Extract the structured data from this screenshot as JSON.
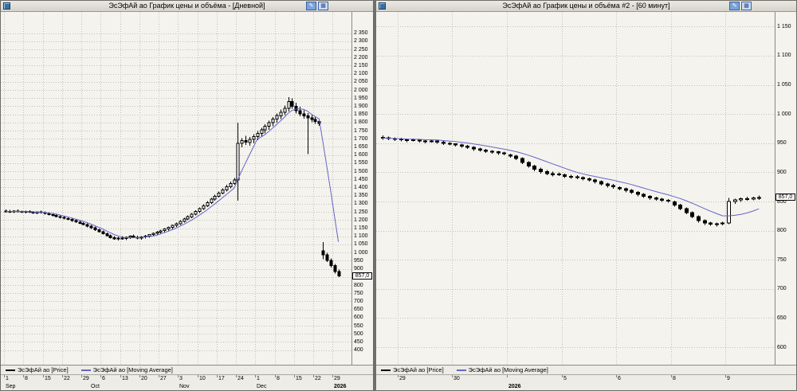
{
  "app": {
    "desktop_bg": "#6f6f6f",
    "grid_color": "#c2c0b8",
    "candle_up_fill": "#ffffff",
    "candle_down_fill": "#000000"
  },
  "windows": [
    {
      "title": "ЭсЭфАй ао График цены и объёма - [Дневной]",
      "price_marker": "857,0",
      "toolbar": {
        "button1": "✎",
        "button2": "▦"
      },
      "legend": [
        {
          "label": "ЭсЭфАй ао [Price]",
          "color": "#000000"
        },
        {
          "label": "ЭсЭфАй ао [Moving Average]",
          "color": "#6565c8"
        }
      ]
    },
    {
      "title": "ЭсЭфАй ао График цены и объёма #2 - [60 минут]",
      "price_marker": "857,0",
      "toolbar": {
        "button1": "✎",
        "button2": "▦"
      },
      "legend": [
        {
          "label": "ЭсЭфАй ао [Price]",
          "color": "#000000"
        },
        {
          "label": "ЭсЭфАй ао [Moving Average]",
          "color": "#6565c8"
        }
      ]
    }
  ],
  "chart_data": [
    {
      "type": "candlestick",
      "title": "ЭсЭфАй ао — Дневной",
      "timeframe": "daily",
      "ylim": [
        310,
        2480
      ],
      "y_ticks": {
        "min": 400,
        "max": 2350,
        "step": 50
      },
      "ma_period": 6,
      "ma_color": "#6565c8",
      "last_price": 857.0,
      "grid": [
        0,
        5,
        10,
        15,
        20,
        25,
        30,
        35,
        40,
        45,
        50,
        55,
        60,
        65,
        70,
        75,
        80,
        85
      ],
      "x_ticks": [
        {
          "label": "1",
          "i": 0
        },
        {
          "label": "8",
          "i": 5
        },
        {
          "label": "15",
          "i": 10
        },
        {
          "label": "22",
          "i": 15
        },
        {
          "label": "29",
          "i": 20
        },
        {
          "label": "6",
          "i": 25
        },
        {
          "label": "13",
          "i": 30
        },
        {
          "label": "20",
          "i": 35
        },
        {
          "label": "27",
          "i": 40
        },
        {
          "label": "3",
          "i": 45
        },
        {
          "label": "10",
          "i": 50
        },
        {
          "label": "17",
          "i": 55
        },
        {
          "label": "24",
          "i": 60
        },
        {
          "label": "1",
          "i": 65
        },
        {
          "label": "8",
          "i": 70
        },
        {
          "label": "15",
          "i": 75
        },
        {
          "label": "22",
          "i": 80
        },
        {
          "label": "29",
          "i": 85
        }
      ],
      "x_row2": [
        {
          "label": "Sep",
          "i": 0
        },
        {
          "label": "Oct",
          "i": 22
        },
        {
          "label": "Nov",
          "i": 45
        },
        {
          "label": "Dec",
          "i": 65
        },
        {
          "label": "2026",
          "i": 85,
          "bold": true
        }
      ],
      "candles": [
        [
          1256,
          1266,
          1246,
          1253
        ],
        [
          1253,
          1262,
          1244,
          1250
        ],
        [
          1250,
          1260,
          1242,
          1256
        ],
        [
          1256,
          1264,
          1248,
          1252
        ],
        [
          1252,
          1258,
          1242,
          1247
        ],
        [
          1247,
          1257,
          1240,
          1253
        ],
        [
          1253,
          1260,
          1244,
          1249
        ],
        [
          1249,
          1256,
          1238,
          1244
        ],
        [
          1244,
          1254,
          1236,
          1250
        ],
        [
          1250,
          1257,
          1241,
          1246
        ],
        [
          1246,
          1252,
          1234,
          1240
        ],
        [
          1240,
          1248,
          1229,
          1234
        ],
        [
          1234,
          1242,
          1222,
          1228
        ],
        [
          1228,
          1236,
          1216,
          1222
        ],
        [
          1222,
          1230,
          1210,
          1216
        ],
        [
          1216,
          1224,
          1204,
          1210
        ],
        [
          1210,
          1218,
          1198,
          1204
        ],
        [
          1204,
          1212,
          1190,
          1196
        ],
        [
          1196,
          1204,
          1182,
          1188
        ],
        [
          1188,
          1196,
          1174,
          1180
        ],
        [
          1180,
          1188,
          1166,
          1172
        ],
        [
          1172,
          1180,
          1156,
          1162
        ],
        [
          1162,
          1170,
          1146,
          1152
        ],
        [
          1152,
          1160,
          1134,
          1140
        ],
        [
          1140,
          1148,
          1122,
          1128
        ],
        [
          1128,
          1136,
          1110,
          1116
        ],
        [
          1116,
          1124,
          1098,
          1104
        ],
        [
          1104,
          1112,
          1086,
          1092
        ],
        [
          1092,
          1102,
          1078,
          1084
        ],
        [
          1084,
          1096,
          1074,
          1090
        ],
        [
          1090,
          1100,
          1080,
          1086
        ],
        [
          1086,
          1098,
          1076,
          1094
        ],
        [
          1094,
          1106,
          1084,
          1100
        ],
        [
          1100,
          1110,
          1088,
          1094
        ],
        [
          1094,
          1104,
          1082,
          1088
        ],
        [
          1088,
          1100,
          1080,
          1096
        ],
        [
          1096,
          1108,
          1086,
          1102
        ],
        [
          1102,
          1114,
          1092,
          1110
        ],
        [
          1110,
          1122,
          1100,
          1118
        ],
        [
          1118,
          1132,
          1108,
          1126
        ],
        [
          1126,
          1140,
          1116,
          1134
        ],
        [
          1134,
          1150,
          1126,
          1144
        ],
        [
          1144,
          1160,
          1136,
          1154
        ],
        [
          1154,
          1172,
          1146,
          1166
        ],
        [
          1166,
          1184,
          1158,
          1178
        ],
        [
          1178,
          1198,
          1170,
          1192
        ],
        [
          1192,
          1214,
          1184,
          1206
        ],
        [
          1206,
          1228,
          1198,
          1220
        ],
        [
          1220,
          1244,
          1212,
          1236
        ],
        [
          1236,
          1260,
          1228,
          1252
        ],
        [
          1252,
          1278,
          1244,
          1270
        ],
        [
          1270,
          1296,
          1262,
          1288
        ],
        [
          1288,
          1316,
          1280,
          1308
        ],
        [
          1308,
          1336,
          1300,
          1328
        ],
        [
          1328,
          1356,
          1318,
          1346
        ],
        [
          1346,
          1376,
          1338,
          1366
        ],
        [
          1366,
          1396,
          1358,
          1386
        ],
        [
          1386,
          1416,
          1376,
          1404
        ],
        [
          1404,
          1436,
          1396,
          1424
        ],
        [
          1424,
          1458,
          1416,
          1446
        ],
        [
          1446,
          1800,
          1320,
          1672
        ],
        [
          1672,
          1704,
          1648,
          1688
        ],
        [
          1688,
          1718,
          1662,
          1678
        ],
        [
          1678,
          1710,
          1656,
          1696
        ],
        [
          1696,
          1728,
          1672,
          1714
        ],
        [
          1714,
          1748,
          1692,
          1734
        ],
        [
          1734,
          1768,
          1712,
          1754
        ],
        [
          1754,
          1790,
          1734,
          1776
        ],
        [
          1776,
          1812,
          1756,
          1798
        ],
        [
          1798,
          1834,
          1778,
          1820
        ],
        [
          1820,
          1856,
          1800,
          1842
        ],
        [
          1842,
          1880,
          1822,
          1864
        ],
        [
          1864,
          1904,
          1846,
          1888
        ],
        [
          1888,
          1955,
          1868,
          1930
        ],
        [
          1930,
          1948,
          1884,
          1900
        ],
        [
          1900,
          1922,
          1856,
          1872
        ],
        [
          1872,
          1898,
          1838,
          1852
        ],
        [
          1852,
          1876,
          1824,
          1840
        ],
        [
          1840,
          1858,
          1605,
          1828
        ],
        [
          1828,
          1846,
          1802,
          1818
        ],
        [
          1818,
          1834,
          1792,
          1806
        ],
        [
          1806,
          1822,
          1780,
          1795
        ],
        [
          1010,
          1065,
          958,
          985
        ],
        [
          985,
          998,
          942,
          952
        ],
        [
          952,
          964,
          908,
          920
        ],
        [
          920,
          930,
          872,
          884
        ],
        [
          884,
          895,
          848,
          857
        ]
      ]
    },
    {
      "type": "candlestick",
      "title": "ЭсЭфАй ао — 60 минут",
      "timeframe": "60min",
      "ylim": [
        570,
        1175
      ],
      "y_ticks": {
        "min": 600,
        "max": 1150,
        "step": 50
      },
      "ma_period": 10,
      "ma_color": "#6565c8",
      "last_price": 857.0,
      "grid": [
        3,
        12,
        21,
        30,
        39,
        48,
        57
      ],
      "x_ticks": [
        {
          "label": "29",
          "i": 3
        },
        {
          "label": "30",
          "i": 12
        },
        {
          "label": "5",
          "i": 30
        },
        {
          "label": "6",
          "i": 39
        },
        {
          "label": "8",
          "i": 48
        },
        {
          "label": "9",
          "i": 57
        }
      ],
      "x_row2": [
        {
          "label": "2026",
          "i": 21,
          "bold": true
        }
      ],
      "candles": [
        [
          960,
          963,
          956,
          959
        ],
        [
          959,
          961,
          955,
          958
        ],
        [
          958,
          960,
          954,
          957
        ],
        [
          957,
          959,
          953,
          956
        ],
        [
          956,
          958,
          952,
          955
        ],
        [
          955,
          958,
          953,
          956
        ],
        [
          956,
          957,
          951,
          954
        ],
        [
          954,
          956,
          950,
          953
        ],
        [
          953,
          956,
          951,
          954
        ],
        [
          954,
          955,
          949,
          952
        ],
        [
          952,
          954,
          947,
          950
        ],
        [
          950,
          952,
          946,
          949
        ],
        [
          949,
          950,
          944,
          947
        ],
        [
          947,
          949,
          942,
          945
        ],
        [
          945,
          947,
          940,
          943
        ],
        [
          943,
          945,
          937,
          940
        ],
        [
          940,
          942,
          935,
          938
        ],
        [
          938,
          940,
          933,
          936
        ],
        [
          936,
          938,
          932,
          935
        ],
        [
          935,
          937,
          930,
          933
        ],
        [
          933,
          935,
          929,
          932
        ],
        [
          930,
          932,
          925,
          928
        ],
        [
          928,
          930,
          921,
          924
        ],
        [
          924,
          926,
          914,
          917
        ],
        [
          917,
          919,
          908,
          911
        ],
        [
          911,
          913,
          902,
          905
        ],
        [
          905,
          908,
          898,
          901
        ],
        [
          901,
          904,
          895,
          898
        ],
        [
          898,
          901,
          893,
          896
        ],
        [
          896,
          900,
          894,
          897
        ],
        [
          896,
          898,
          890,
          893
        ],
        [
          893,
          896,
          889,
          892
        ],
        [
          892,
          895,
          888,
          891
        ],
        [
          891,
          893,
          886,
          889
        ],
        [
          889,
          891,
          884,
          887
        ],
        [
          887,
          889,
          881,
          884
        ],
        [
          884,
          886,
          877,
          880
        ],
        [
          880,
          882,
          874,
          877
        ],
        [
          877,
          880,
          872,
          875
        ],
        [
          874,
          876,
          869,
          872
        ],
        [
          872,
          874,
          866,
          869
        ],
        [
          869,
          871,
          863,
          866
        ],
        [
          866,
          868,
          859,
          862
        ],
        [
          862,
          864,
          856,
          859
        ],
        [
          859,
          861,
          853,
          856
        ],
        [
          856,
          858,
          851,
          854
        ],
        [
          854,
          856,
          849,
          852
        ],
        [
          852,
          854,
          848,
          851
        ],
        [
          849,
          851,
          841,
          844
        ],
        [
          844,
          846,
          835,
          838
        ],
        [
          838,
          840,
          828,
          831
        ],
        [
          831,
          833,
          821,
          824
        ],
        [
          824,
          826,
          814,
          817
        ],
        [
          817,
          819,
          810,
          813
        ],
        [
          813,
          815,
          808,
          811
        ],
        [
          811,
          814,
          807,
          812
        ],
        [
          812,
          815,
          809,
          813
        ],
        [
          813,
          856,
          811,
          850
        ],
        [
          850,
          855,
          846,
          853
        ],
        [
          853,
          857,
          849,
          855
        ],
        [
          855,
          858,
          851,
          854
        ],
        [
          854,
          858,
          852,
          856
        ],
        [
          856,
          860,
          853,
          857
        ]
      ]
    }
  ]
}
